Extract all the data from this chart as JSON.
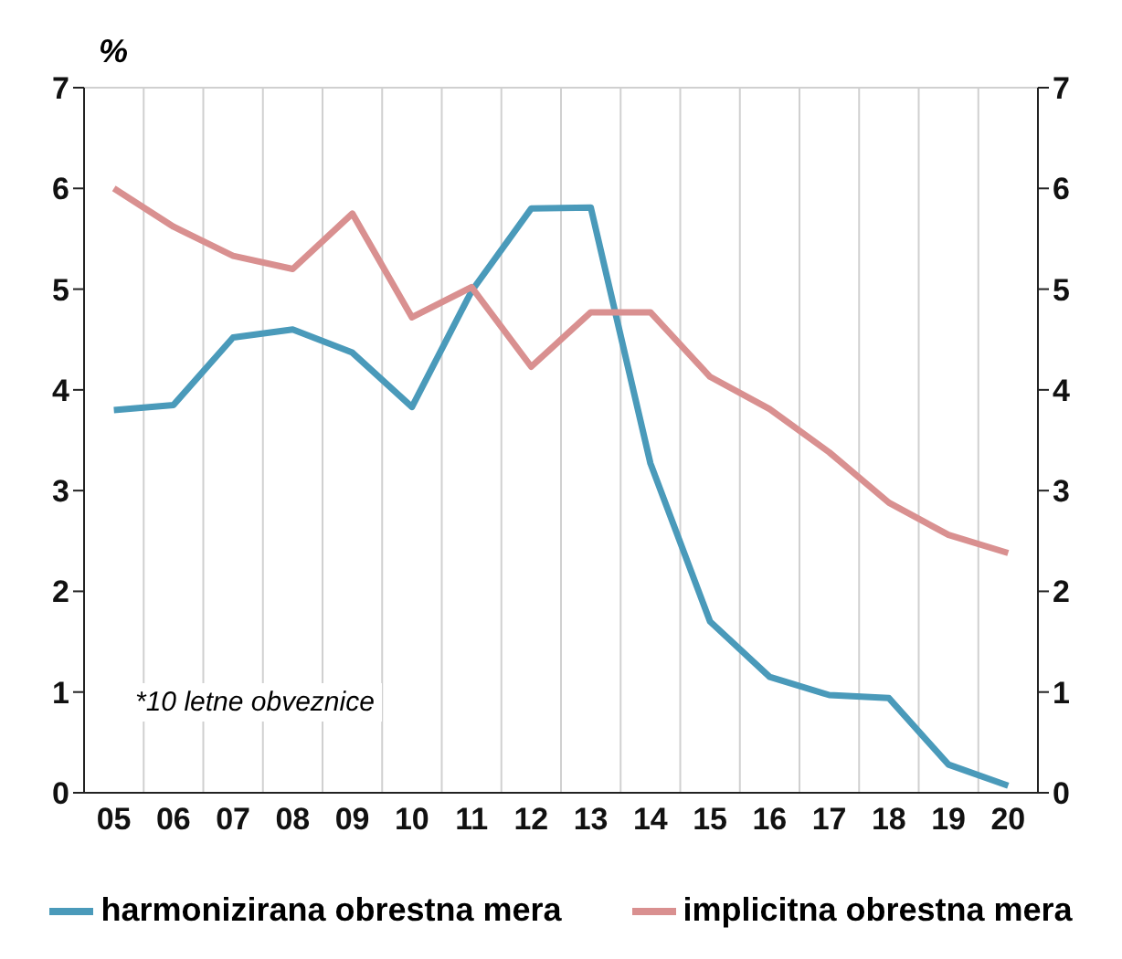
{
  "chart_data": {
    "type": "line",
    "ylabel": "%",
    "annotations": [
      "*10 letne obveznice"
    ],
    "categories": [
      "05",
      "06",
      "07",
      "08",
      "09",
      "10",
      "11",
      "12",
      "13",
      "14",
      "15",
      "16",
      "17",
      "18",
      "19",
      "20"
    ],
    "series": [
      {
        "name": "harmonizirana obrestna mera",
        "color": "#4a9aba",
        "values": [
          3.8,
          3.85,
          4.52,
          4.6,
          4.37,
          3.83,
          4.98,
          5.8,
          5.81,
          3.27,
          1.7,
          1.15,
          0.97,
          0.94,
          0.28,
          0.07
        ]
      },
      {
        "name": "implicitna obrestna mera",
        "color": "#d99090",
        "values": [
          6.0,
          5.62,
          5.33,
          5.2,
          5.75,
          4.72,
          5.02,
          4.23,
          4.77,
          4.77,
          4.13,
          3.81,
          3.38,
          2.88,
          2.56,
          2.38
        ]
      }
    ],
    "ylim": [
      0,
      7
    ],
    "yticks": [
      0,
      1,
      2,
      3,
      4,
      5,
      6,
      7
    ],
    "y2lim": [
      0,
      7
    ],
    "y2ticks": [
      0,
      1,
      2,
      3,
      4,
      5,
      6,
      7
    ],
    "grid": true,
    "legend": "bottom",
    "marker": "none",
    "line_style": "solid"
  }
}
